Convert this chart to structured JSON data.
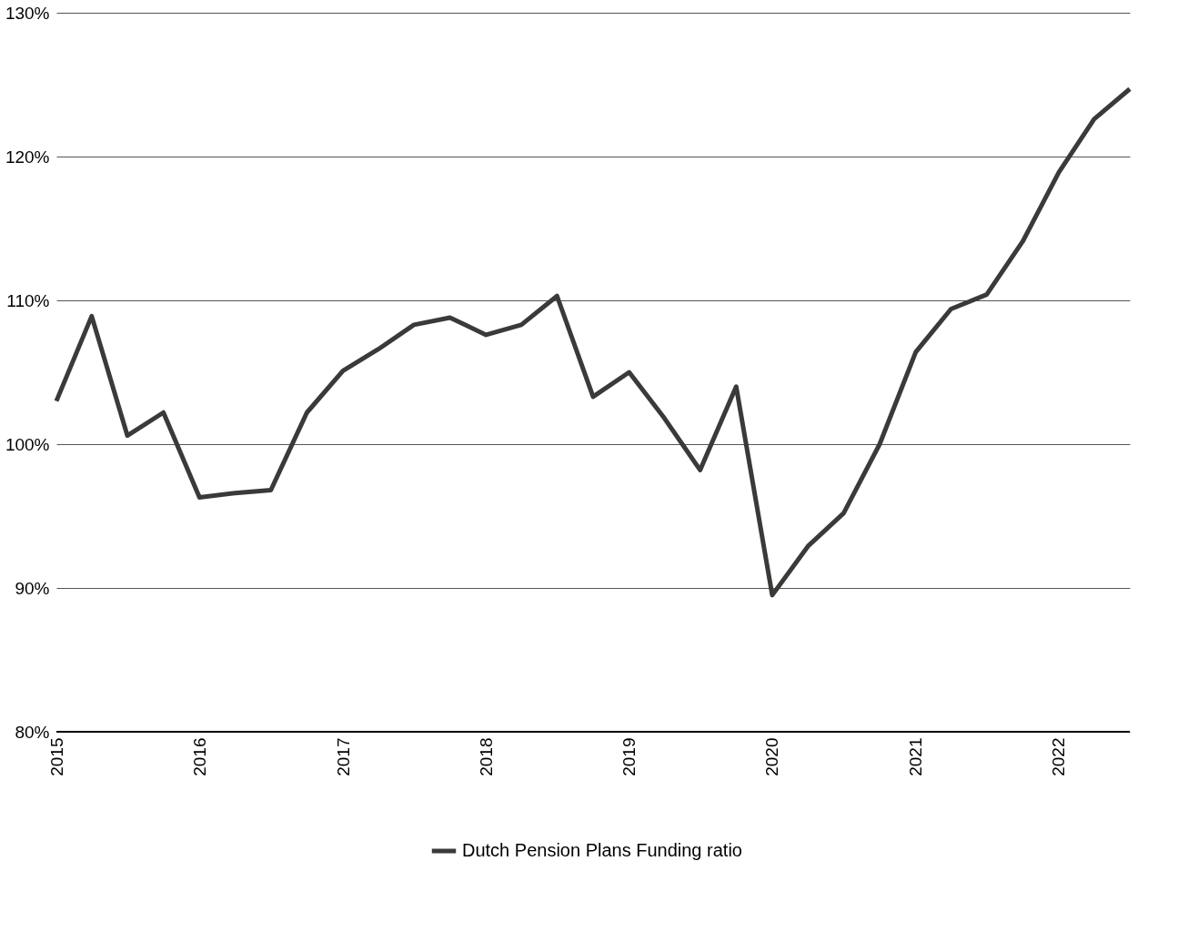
{
  "chart_data": {
    "type": "line",
    "x": [
      "2015-01",
      "2015-04",
      "2015-07",
      "2015-10",
      "2016-01",
      "2016-04",
      "2016-07",
      "2016-10",
      "2017-01",
      "2017-04",
      "2017-07",
      "2017-10",
      "2018-01",
      "2018-04",
      "2018-07",
      "2018-10",
      "2019-01",
      "2019-04",
      "2019-07",
      "2019-10",
      "2020-01",
      "2020-04",
      "2020-07",
      "2020-10",
      "2021-01",
      "2021-04",
      "2021-07",
      "2021-10",
      "2022-01",
      "2022-04",
      "2022-07"
    ],
    "series": [
      {
        "name": "Dutch Pension Plans Funding ratio",
        "color": "#3a3a38",
        "values": [
          103.0,
          108.9,
          100.6,
          102.2,
          96.3,
          96.6,
          96.8,
          102.2,
          105.1,
          106.6,
          108.3,
          108.8,
          107.6,
          108.3,
          110.3,
          103.3,
          105.0,
          101.8,
          98.2,
          104.0,
          89.5,
          92.9,
          95.2,
          100.0,
          106.4,
          109.4,
          110.4,
          114.1,
          118.9,
          122.6,
          124.7
        ]
      }
    ],
    "xlim": [
      "2015-01",
      "2022-07"
    ],
    "xticks": [
      "2015",
      "2016",
      "2017",
      "2018",
      "2019",
      "2020",
      "2021",
      "2022"
    ],
    "ylim": [
      80,
      130
    ],
    "yticks": [
      {
        "value": 80,
        "label": "80%"
      },
      {
        "value": 90,
        "label": "90%"
      },
      {
        "value": 100,
        "label": "100%"
      },
      {
        "value": 110,
        "label": "110%"
      },
      {
        "value": 120,
        "label": "120%"
      },
      {
        "value": 130,
        "label": "130%"
      }
    ],
    "grid": "y",
    "legend": "bottom",
    "marker": "none",
    "line_style": "solid"
  }
}
